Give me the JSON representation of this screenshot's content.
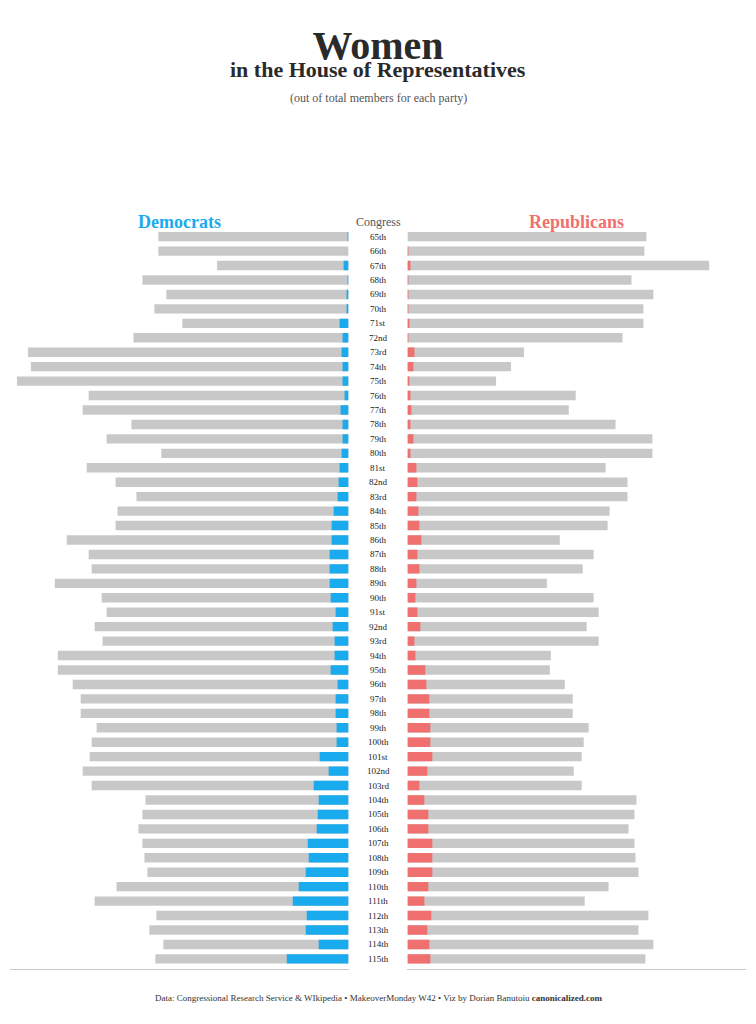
{
  "chart_data": {
    "type": "bar",
    "orientation": "horizontal",
    "stacked": false,
    "title": "Women",
    "subtitle": "in the House of Representatives",
    "annotations": [
      "(out of total members for each party)"
    ],
    "footer": [
      "Data: Congressional Research Service & WIkipedia • MakeoverMonday W42 • Viz by Dorian Banutoiu ",
      "canonicalized.com"
    ],
    "y_label": "Congress",
    "categories": [
      "65th",
      "66th",
      "67th",
      "68th",
      "69th",
      "70th",
      "71st",
      "72nd",
      "73rd",
      "74th",
      "75th",
      "76th",
      "77th",
      "78th",
      "79th",
      "80th",
      "81st",
      "82nd",
      "83rd",
      "84th",
      "85th",
      "86th",
      "87th",
      "88th",
      "89th",
      "90th",
      "91st",
      "92nd",
      "93rd",
      "94th",
      "95th",
      "96th",
      "97th",
      "98th",
      "99th",
      "100th",
      "101st",
      "102nd",
      "103rd",
      "104th",
      "105th",
      "106th",
      "107th",
      "108th",
      "109th",
      "110th",
      "111th",
      "112th",
      "113th",
      "114th",
      "115th"
    ],
    "series": [
      {
        "name": "Democrats",
        "color": "#C8C8C8",
        "values": [
          191,
          191,
          132,
          207,
          183,
          195,
          167,
          216,
          322,
          319,
          333,
          261,
          267,
          218,
          243,
          188,
          263,
          234,
          213,
          232,
          234,
          283,
          261,
          258,
          295,
          248,
          243,
          255,
          247,
          292,
          292,
          277,
          269,
          269,
          253,
          258,
          260,
          267,
          258,
          204,
          207,
          211,
          207,
          205,
          202,
          233,
          255,
          193,
          200,
          186,
          194
        ]
      },
      {
        "name": "Democrats",
        "color": "#1AABEE",
        "values": [
          1,
          0,
          5,
          1,
          2,
          2,
          9,
          6,
          7,
          6,
          6,
          4,
          8,
          6,
          6,
          7,
          9,
          10,
          11,
          15,
          17,
          17,
          19,
          19,
          19,
          18,
          13,
          16,
          14,
          14,
          18,
          11,
          13,
          13,
          12,
          12,
          29,
          20,
          35,
          30,
          31,
          32,
          41,
          40,
          43,
          50,
          56,
          42,
          43,
          30,
          62
        ]
      },
      {
        "name": "Republicans",
        "color": "#C8C8C8",
        "axis": "x2",
        "values": [
          240,
          238,
          303,
          225,
          247,
          237,
          237,
          216,
          117,
          104,
          89,
          169,
          162,
          209,
          246,
          246,
          199,
          221,
          221,
          203,
          201,
          153,
          187,
          176,
          140,
          187,
          192,
          180,
          192,
          144,
          143,
          158,
          166,
          166,
          182,
          177,
          175,
          167,
          175,
          230,
          228,
          222,
          228,
          229,
          232,
          202,
          178,
          242,
          232,
          247,
          239
        ]
      },
      {
        "name": "Republicans",
        "color": "#F07070",
        "axis": "x2",
        "values": [
          0,
          1,
          3,
          1,
          1,
          1,
          2,
          1,
          7,
          6,
          2,
          3,
          4,
          3,
          6,
          3,
          9,
          10,
          9,
          11,
          12,
          14,
          10,
          12,
          9,
          8,
          10,
          13,
          7,
          8,
          18,
          19,
          22,
          22,
          23,
          23,
          25,
          20,
          12,
          17,
          21,
          21,
          25,
          25,
          25,
          21,
          17,
          24,
          20,
          22,
          23
        ]
      }
    ],
    "xlim": [
      0,
      340
    ],
    "tick_labels": false,
    "grid": false
  }
}
